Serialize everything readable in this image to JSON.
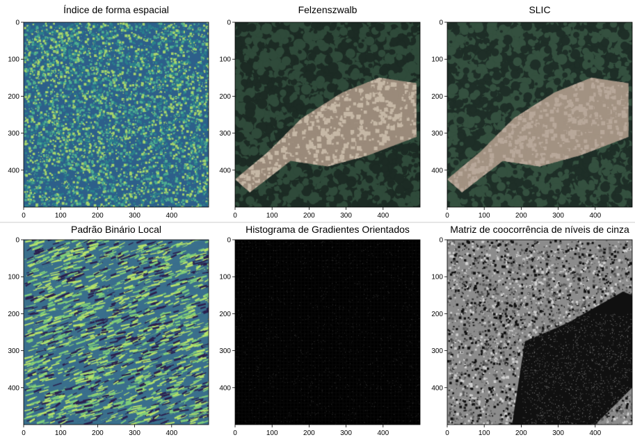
{
  "chart_data": [
    {
      "type": "heatmap",
      "title": "Índice de forma espacial",
      "xticks": [
        "0",
        "100",
        "200",
        "300",
        "400"
      ],
      "yticks": [
        "0",
        "100",
        "200",
        "300",
        "400"
      ],
      "xlim": [
        0,
        500
      ],
      "ylim": [
        500,
        0
      ],
      "style": "texture",
      "palette": [
        "#2d5f8a",
        "#4fae8f",
        "#a6d66b",
        "#2a7e8c"
      ]
    },
    {
      "type": "heatmap",
      "title": "Felzenszwalb",
      "xticks": [
        "0",
        "100",
        "200",
        "300",
        "400"
      ],
      "yticks": [
        "0",
        "100",
        "200",
        "300",
        "400"
      ],
      "xlim": [
        0,
        500
      ],
      "ylim": [
        500,
        0
      ],
      "style": "photo",
      "palette": [
        "#1c2b24",
        "#2f4a3a",
        "#c6b8a6",
        "#9a8a7a"
      ]
    },
    {
      "type": "heatmap",
      "title": "SLIC",
      "xticks": [
        "0",
        "100",
        "200",
        "300",
        "400"
      ],
      "yticks": [
        "0",
        "100",
        "200",
        "300",
        "400"
      ],
      "xlim": [
        0,
        500
      ],
      "ylim": [
        500,
        0
      ],
      "style": "photo",
      "palette": [
        "#1e2e27",
        "#34503f",
        "#b8a89a",
        "#a29282"
      ]
    },
    {
      "type": "heatmap",
      "title": "Padrão Binário Local",
      "xticks": [
        "0",
        "100",
        "200",
        "300",
        "400"
      ],
      "yticks": [
        "0",
        "100",
        "200",
        "300",
        "400"
      ],
      "xlim": [
        0,
        500
      ],
      "ylim": [
        500,
        0
      ],
      "style": "stripes",
      "palette": [
        "#2b1f4e",
        "#3a6f8c",
        "#7fce7a",
        "#b7e36a"
      ]
    },
    {
      "type": "heatmap",
      "title": "Histograma de Gradientes Orientados",
      "xticks": [
        "0",
        "100",
        "200",
        "300",
        "400"
      ],
      "yticks": [
        "0",
        "100",
        "200",
        "300",
        "400"
      ],
      "xlim": [
        0,
        500
      ],
      "ylim": [
        500,
        0
      ],
      "style": "dark",
      "palette": [
        "#000000",
        "#151515",
        "#2b2b2b",
        "#3a3a3a"
      ]
    },
    {
      "type": "heatmap",
      "title": "Matriz de coocorrência de níveis de cinza",
      "xticks": [
        "0",
        "100",
        "200",
        "300",
        "400"
      ],
      "yticks": [
        "0",
        "100",
        "200",
        "300",
        "400"
      ],
      "xlim": [
        0,
        500
      ],
      "ylim": [
        500,
        0
      ],
      "style": "gray",
      "palette": [
        "#101010",
        "#5a5a5a",
        "#8c8c8c",
        "#cfcfcf"
      ]
    }
  ]
}
